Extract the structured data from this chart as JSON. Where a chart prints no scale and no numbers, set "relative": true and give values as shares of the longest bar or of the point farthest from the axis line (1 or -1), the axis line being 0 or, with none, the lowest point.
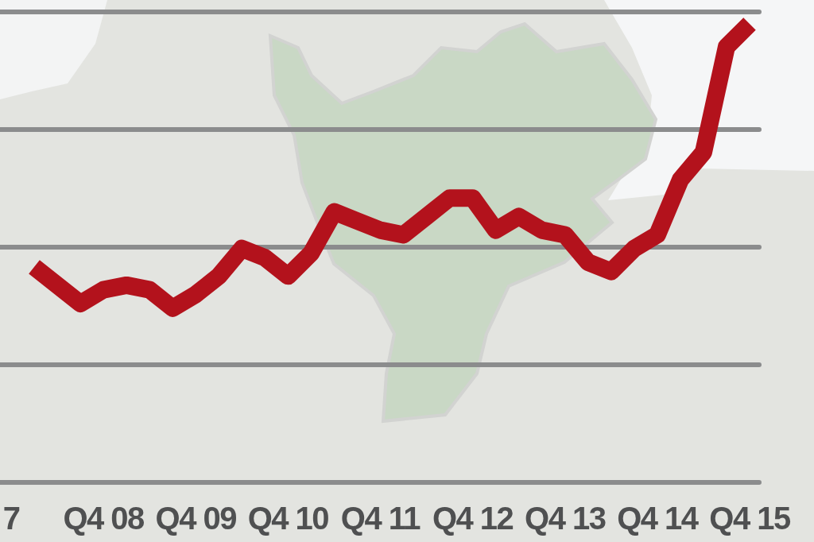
{
  "chart_data": {
    "type": "line",
    "relative": true,
    "grid": true,
    "categories": [
      "7",
      null,
      null,
      null,
      "Q4 08",
      null,
      null,
      null,
      "Q4 09",
      null,
      null,
      null,
      "Q4 10",
      null,
      null,
      null,
      "Q4 11",
      null,
      null,
      null,
      "Q4 12",
      null,
      null,
      null,
      "Q4 13",
      null,
      null,
      null,
      "Q4 14",
      null,
      null,
      null,
      "Q4 15"
    ],
    "series": [
      {
        "color": "#b3121c",
        "values": [
          null,
          0.47,
          0.43,
          0.39,
          0.42,
          0.43,
          0.42,
          0.38,
          0.41,
          0.45,
          0.51,
          0.49,
          0.45,
          0.5,
          0.59,
          0.57,
          0.55,
          0.54,
          0.58,
          0.62,
          0.62,
          0.55,
          0.58,
          0.55,
          0.54,
          0.48,
          0.46,
          0.51,
          0.54,
          0.66,
          0.72,
          0.95,
          1
        ]
      }
    ]
  }
}
